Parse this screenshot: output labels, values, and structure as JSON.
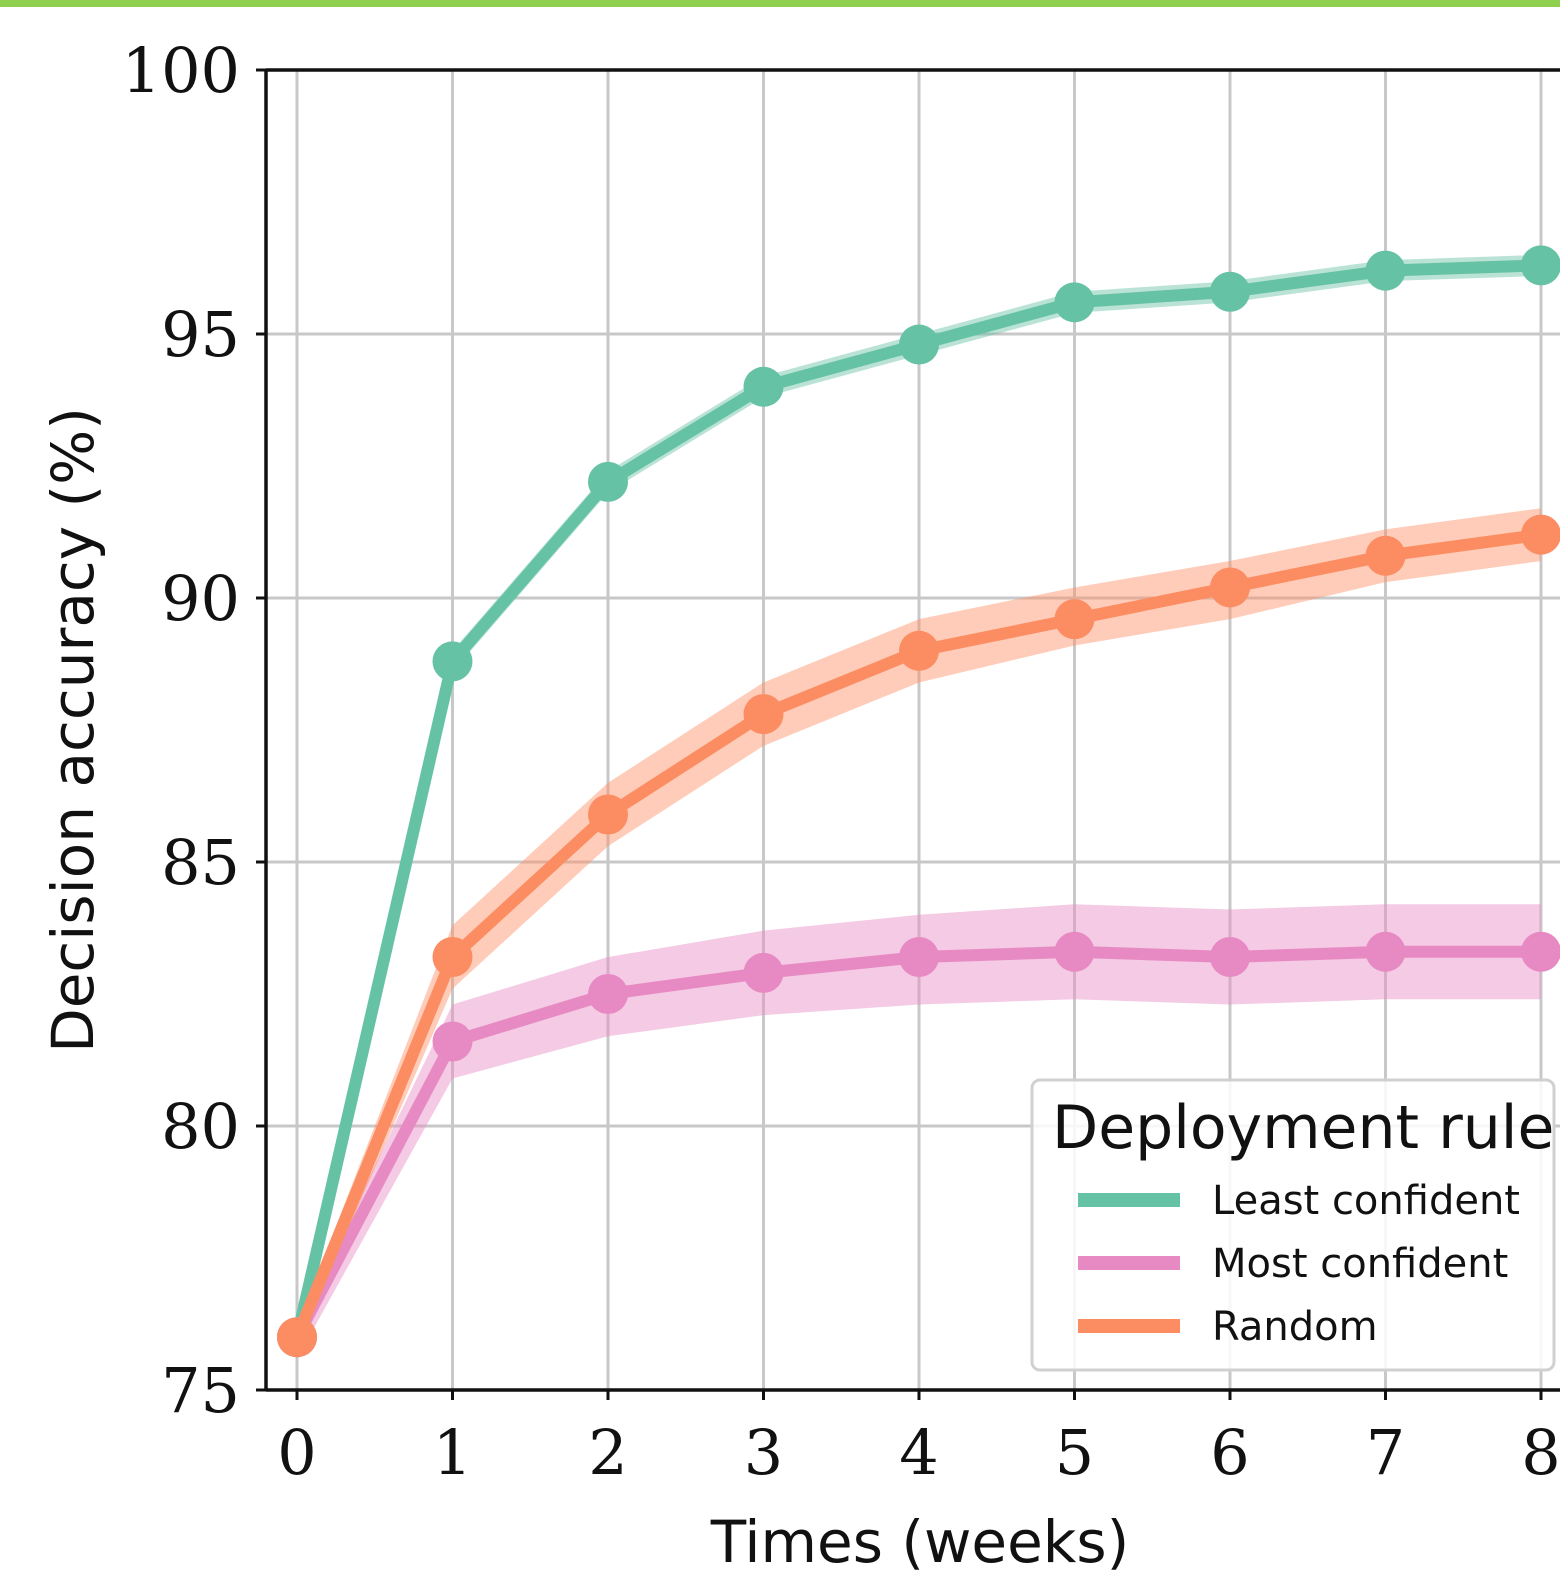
{
  "chart_data": {
    "type": "line",
    "title": "",
    "xlabel": "Times (weeks)",
    "ylabel": "Decision accuracy (%)",
    "x": [
      0,
      1,
      2,
      3,
      4,
      5,
      6,
      7,
      8
    ],
    "xticks": [
      "0",
      "1",
      "2",
      "3",
      "4",
      "5",
      "6",
      "7",
      "8"
    ],
    "yticks": [
      "75",
      "80",
      "85",
      "90",
      "95",
      "100"
    ],
    "xlim": [
      -0.2,
      8.0
    ],
    "ylim": [
      75,
      100
    ],
    "grid": true,
    "legend": {
      "title": "Deployment rule",
      "position": "lower-right"
    },
    "series": [
      {
        "name": "Least confident",
        "color": "#66c2a5",
        "values": [
          76.0,
          88.8,
          92.2,
          94.0,
          94.8,
          95.6,
          95.8,
          96.2,
          96.3
        ],
        "lower": [
          76.0,
          88.6,
          92.0,
          93.8,
          94.6,
          95.4,
          95.6,
          96.0,
          96.1
        ],
        "upper": [
          76.0,
          89.0,
          92.4,
          94.2,
          95.0,
          95.8,
          96.0,
          96.4,
          96.5
        ]
      },
      {
        "name": "Most confident",
        "color": "#e78ac3",
        "values": [
          76.0,
          81.6,
          82.5,
          82.9,
          83.2,
          83.3,
          83.2,
          83.3,
          83.3
        ],
        "lower": [
          75.6,
          80.9,
          81.7,
          82.1,
          82.3,
          82.4,
          82.3,
          82.4,
          82.4
        ],
        "upper": [
          76.2,
          82.3,
          83.2,
          83.7,
          84.0,
          84.2,
          84.1,
          84.2,
          84.2
        ]
      },
      {
        "name": "Random",
        "color": "#fc8d62",
        "values": [
          76.0,
          83.2,
          85.9,
          87.8,
          89.0,
          89.6,
          90.2,
          90.8,
          91.2
        ],
        "lower": [
          75.8,
          82.6,
          85.3,
          87.2,
          88.4,
          89.1,
          89.6,
          90.3,
          90.7
        ],
        "upper": [
          76.2,
          83.8,
          86.5,
          88.4,
          89.6,
          90.2,
          90.7,
          91.3,
          91.7
        ]
      }
    ]
  }
}
